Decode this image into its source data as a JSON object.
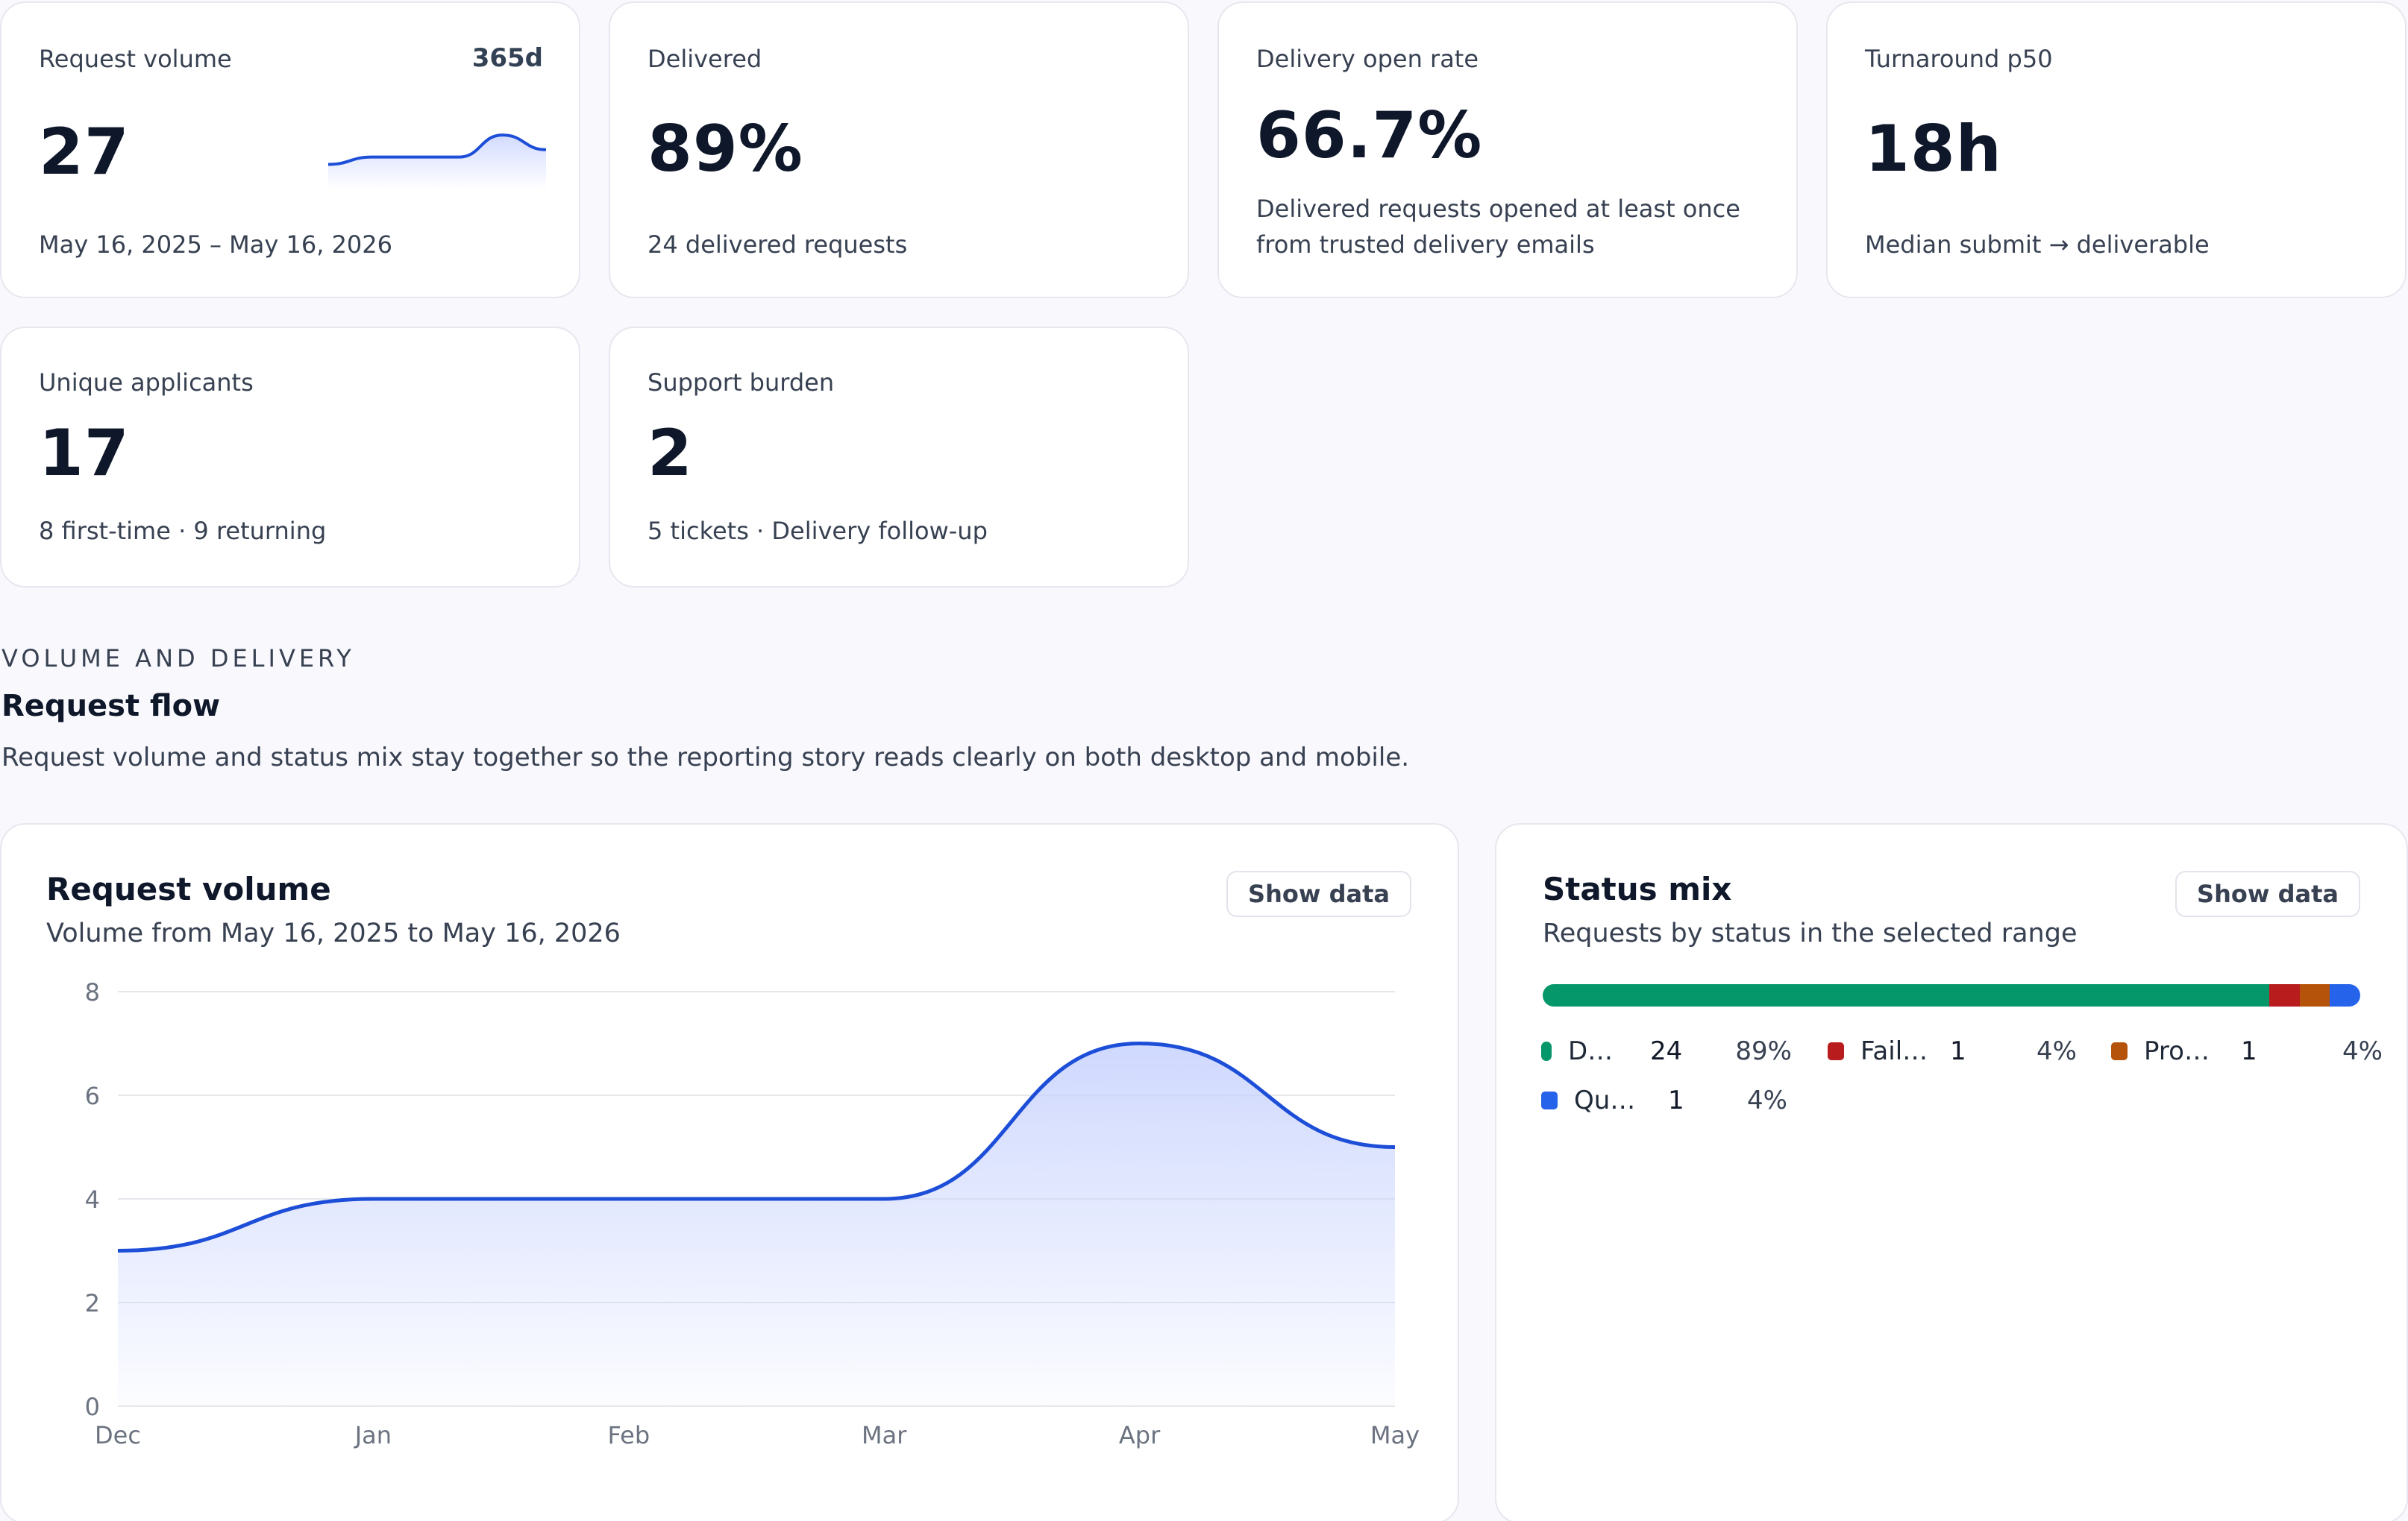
{
  "kpis": {
    "request_volume": {
      "label": "Request volume",
      "badge": "365d",
      "value": "27",
      "sub": "May 16, 2025 – May 16, 2026",
      "spark_accent": "#1d4ed8"
    },
    "delivered": {
      "label": "Delivered",
      "value": "89%",
      "sub": "24 delivered requests"
    },
    "open_rate": {
      "label": "Delivery open rate",
      "value": "66.7%",
      "sub_line1": "Delivered requests opened at least once",
      "sub_line2": "from trusted delivery emails"
    },
    "turnaround": {
      "label": "Turnaround p50",
      "value": "18h",
      "sub": "Median submit → deliverable"
    },
    "unique_applicants": {
      "label": "Unique applicants",
      "value": "17",
      "sub": "8 first-time · 9 returning"
    },
    "support_burden": {
      "label": "Support burden",
      "value": "2",
      "sub": "5 tickets · Delivery follow-up"
    }
  },
  "section": {
    "eyebrow": "VOLUME AND DELIVERY",
    "title": "Request flow",
    "description": "Request volume and status mix stay together so the reporting story reads clearly on both desktop and mobile."
  },
  "volume_panel": {
    "title": "Request volume",
    "subtitle": "Volume from May 16, 2025 to May 16, 2026",
    "show_data": "Show data"
  },
  "status_panel": {
    "title": "Status mix",
    "subtitle": "Requests by status in the selected range",
    "show_data": "Show data",
    "items": [
      {
        "name": "D…",
        "count": "24",
        "pct": "89%",
        "color": "#059669",
        "share": 0.889
      },
      {
        "name": "Fail…",
        "count": "1",
        "pct": "4%",
        "color": "#b91c1c",
        "share": 0.037
      },
      {
        "name": "Pro…",
        "count": "1",
        "pct": "4%",
        "color": "#b45309",
        "share": 0.037
      },
      {
        "name": "Qu…",
        "count": "1",
        "pct": "4%",
        "color": "#2563eb",
        "share": 0.037
      }
    ]
  },
  "chart_data": {
    "type": "area",
    "title": "Request volume",
    "categories": [
      "Dec",
      "Jan",
      "Feb",
      "Mar",
      "Apr",
      "May"
    ],
    "series": [
      {
        "values": [
          3,
          4,
          4,
          4,
          7,
          5
        ]
      }
    ],
    "ylim": [
      0,
      8
    ],
    "yticks": [
      "0",
      "2",
      "4",
      "6",
      "8"
    ],
    "grid": true,
    "line_color": "#1d4ed8",
    "fill_color": "#c7d2fe"
  },
  "sparkline_data": {
    "values": [
      3,
      4,
      4,
      4,
      7,
      5
    ],
    "ylim": [
      0,
      8
    ]
  }
}
